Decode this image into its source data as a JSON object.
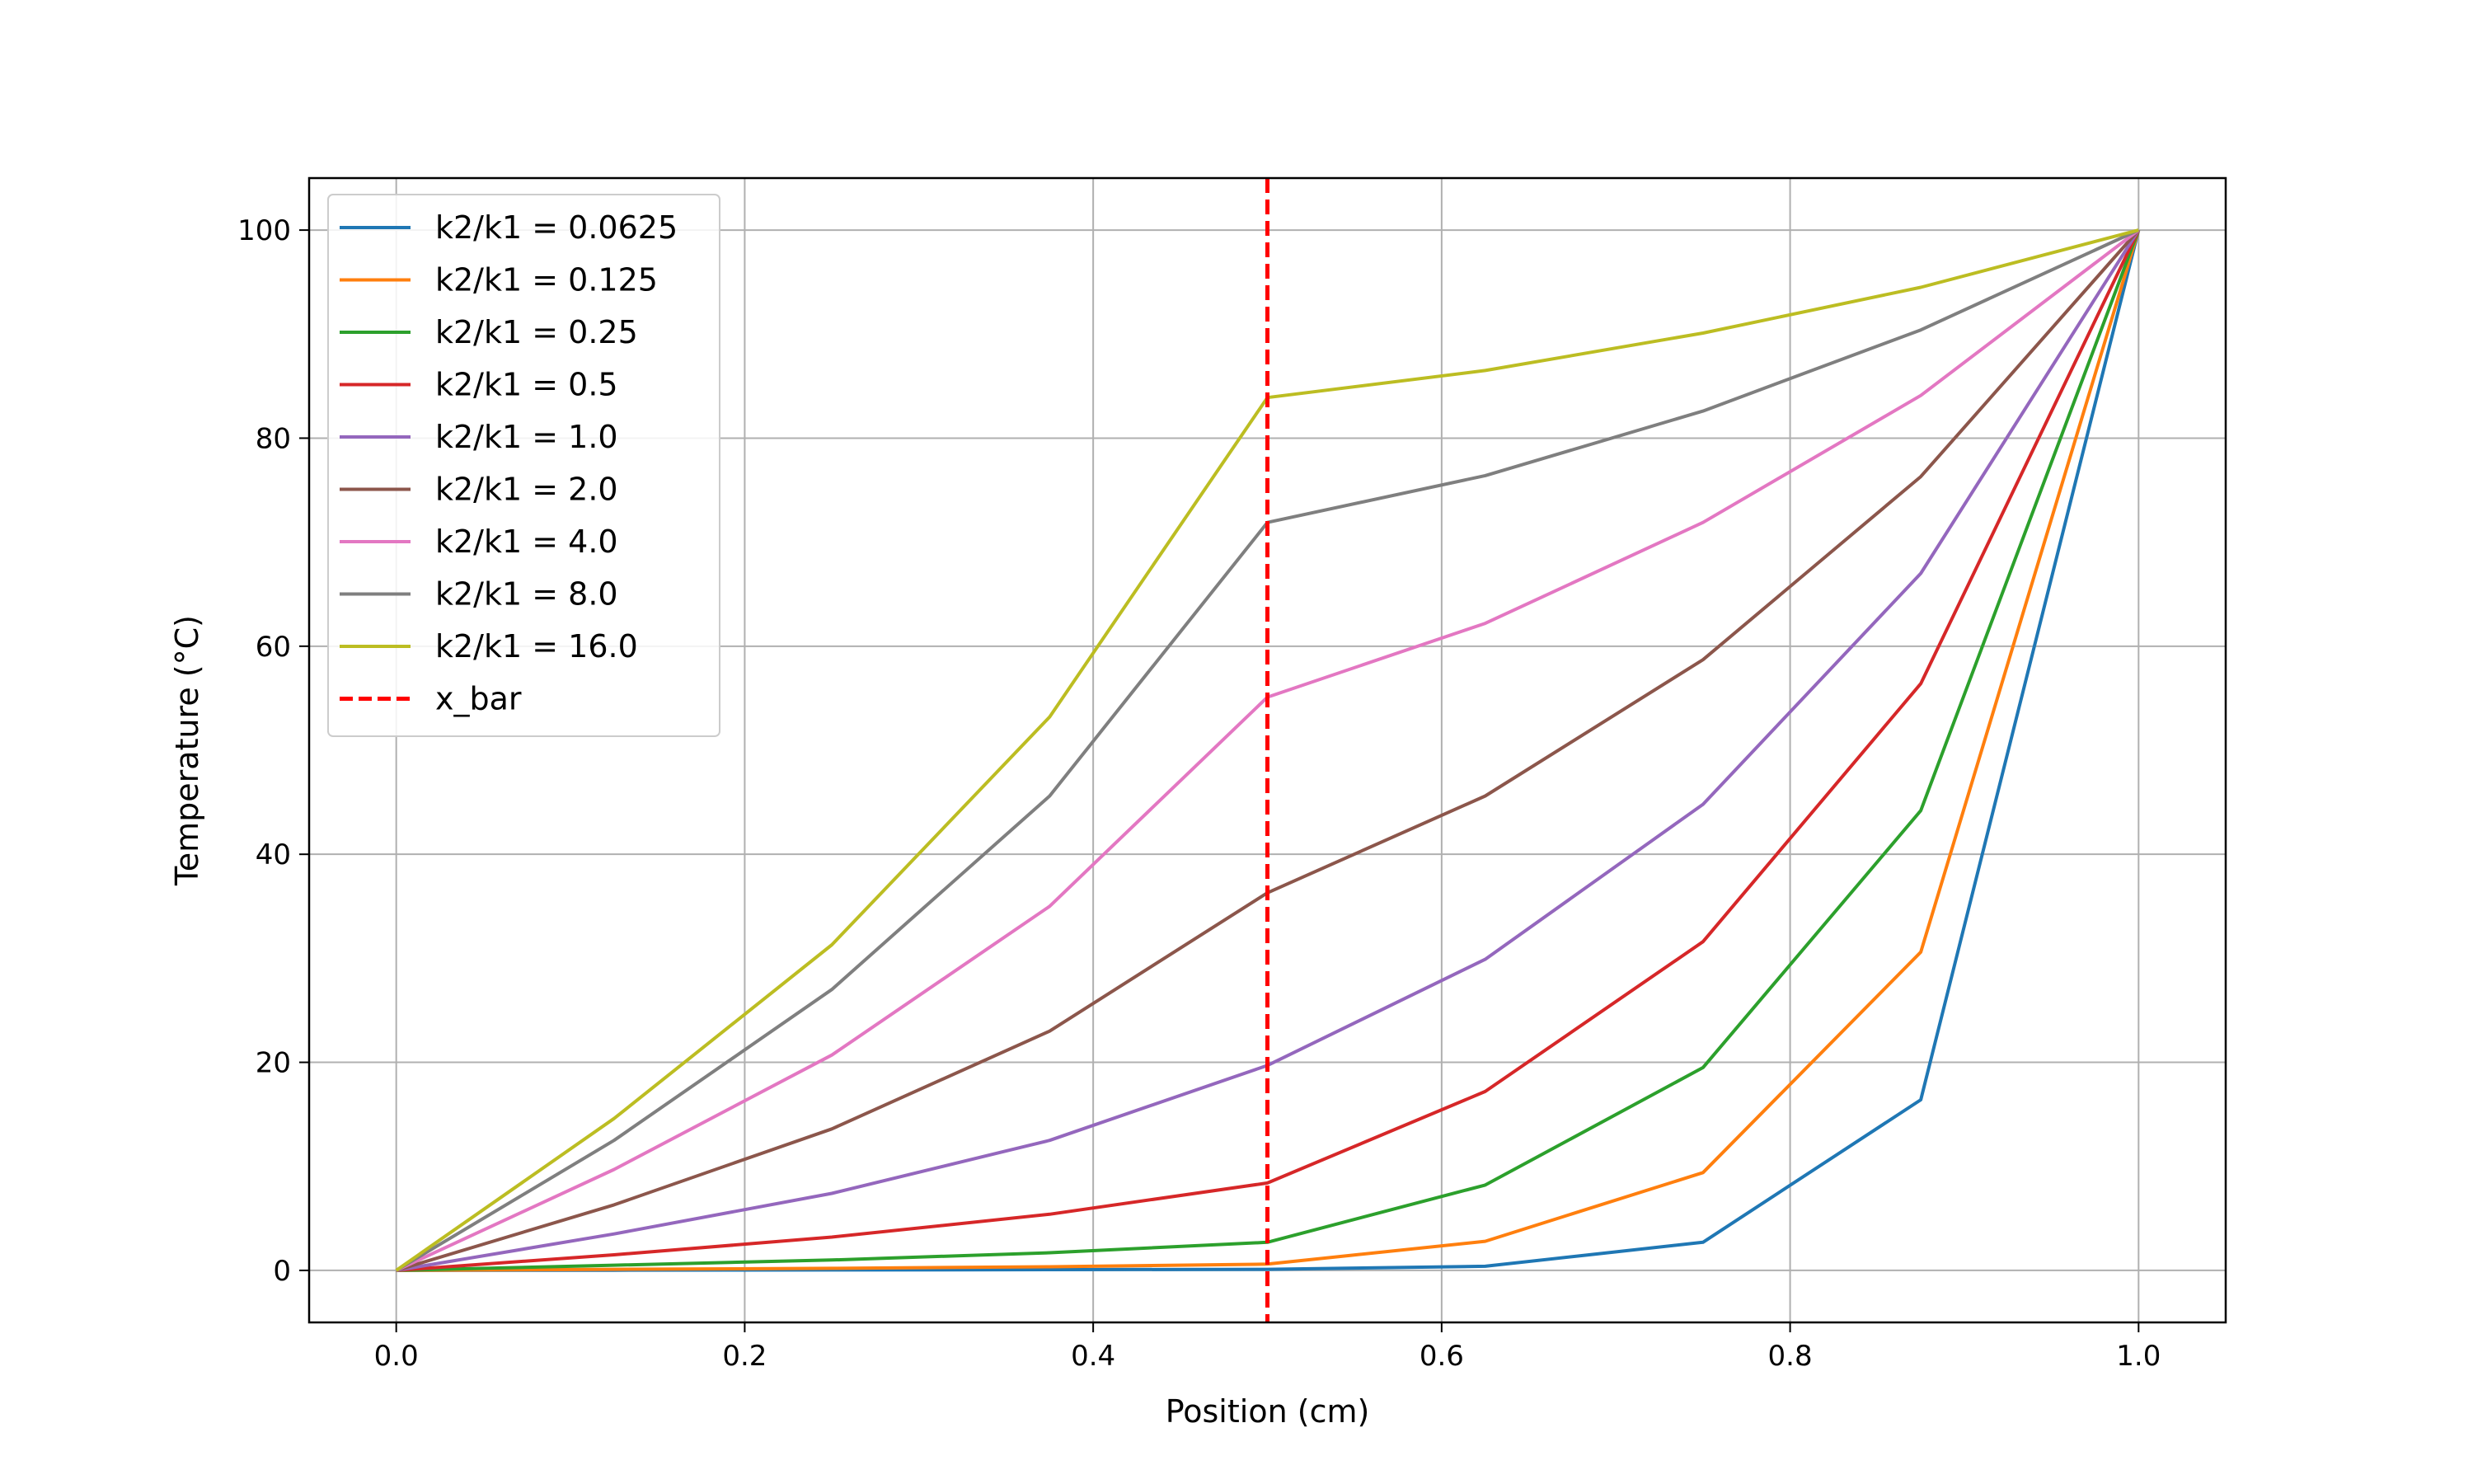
{
  "chart_data": {
    "type": "line",
    "title": "",
    "xlabel": "Position (cm)",
    "ylabel": "Temperature (°C)",
    "xlim": [
      -0.05,
      1.05
    ],
    "ylim": [
      -5,
      105
    ],
    "xticks": [
      0.0,
      0.2,
      0.4,
      0.6,
      0.8,
      1.0
    ],
    "xtick_labels": [
      "0.0",
      "0.2",
      "0.4",
      "0.6",
      "0.8",
      "1.0"
    ],
    "yticks": [
      0,
      20,
      40,
      60,
      80,
      100
    ],
    "ytick_labels": [
      "0",
      "20",
      "40",
      "60",
      "80",
      "100"
    ],
    "grid": true,
    "legend_position": "top-left",
    "x": [
      0.0,
      0.125,
      0.25,
      0.375,
      0.5,
      0.625,
      0.75,
      0.875,
      1.0
    ],
    "series": [
      {
        "name": "k2/k1 = 0.0625",
        "color": "#1f77b4",
        "values": [
          0,
          0.02,
          0.04,
          0.07,
          0.1,
          0.4,
          2.7,
          16.4,
          100
        ]
      },
      {
        "name": "k2/k1 = 0.125",
        "color": "#ff7f0e",
        "values": [
          0,
          0.1,
          0.2,
          0.35,
          0.6,
          2.8,
          9.4,
          30.6,
          100
        ]
      },
      {
        "name": "k2/k1 = 0.25",
        "color": "#2ca02c",
        "values": [
          0,
          0.5,
          1.0,
          1.7,
          2.7,
          8.2,
          19.5,
          44.2,
          100
        ]
      },
      {
        "name": "k2/k1 = 0.5",
        "color": "#d62728",
        "values": [
          0,
          1.5,
          3.2,
          5.4,
          8.4,
          17.2,
          31.6,
          56.4,
          100
        ]
      },
      {
        "name": "k2/k1 = 1.0",
        "color": "#9467bd",
        "values": [
          0,
          3.5,
          7.4,
          12.5,
          19.7,
          29.9,
          44.8,
          67.0,
          100
        ]
      },
      {
        "name": "k2/k1 = 2.0",
        "color": "#8c564b",
        "values": [
          0,
          6.3,
          13.6,
          23.0,
          36.3,
          45.6,
          58.7,
          76.3,
          100
        ]
      },
      {
        "name": "k2/k1 = 4.0",
        "color": "#e377c2",
        "values": [
          0,
          9.7,
          20.7,
          35.0,
          55.1,
          62.2,
          71.9,
          84.1,
          100
        ]
      },
      {
        "name": "k2/k1 = 8.0",
        "color": "#7f7f7f",
        "values": [
          0,
          12.5,
          27.0,
          45.6,
          71.9,
          76.4,
          82.6,
          90.4,
          100
        ]
      },
      {
        "name": "k2/k1 = 16.0",
        "color": "#bcbd22",
        "values": [
          0,
          14.6,
          31.3,
          53.2,
          83.9,
          86.5,
          90.1,
          94.5,
          100
        ]
      }
    ],
    "vline": {
      "name": "x_bar",
      "x": 0.5,
      "color": "#ff0000",
      "style": "dashed"
    }
  }
}
